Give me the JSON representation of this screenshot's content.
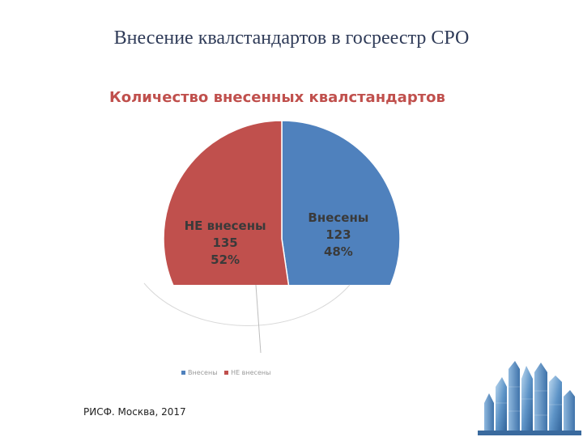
{
  "slide": {
    "title": "Внесение квалстандартов в госреестр СРО",
    "footer": "РИСФ. Москва, 2017"
  },
  "chart_data": {
    "type": "pie",
    "title": "Количество внесенных квалстандартов",
    "slices": [
      {
        "label": "Внесены",
        "value": 123,
        "percent": "48%",
        "color": "#4f81bd"
      },
      {
        "label": "НЕ внесены",
        "value": 135,
        "percent": "52%",
        "color": "#c0504d"
      }
    ],
    "legend": {
      "placement": "bottom"
    }
  },
  "colors": {
    "title_text": "#2f3b58",
    "chart_title": "#c0504d",
    "label_text": "#3a3a3a"
  },
  "decoration": {
    "skyline": "city-skyline-icon"
  }
}
